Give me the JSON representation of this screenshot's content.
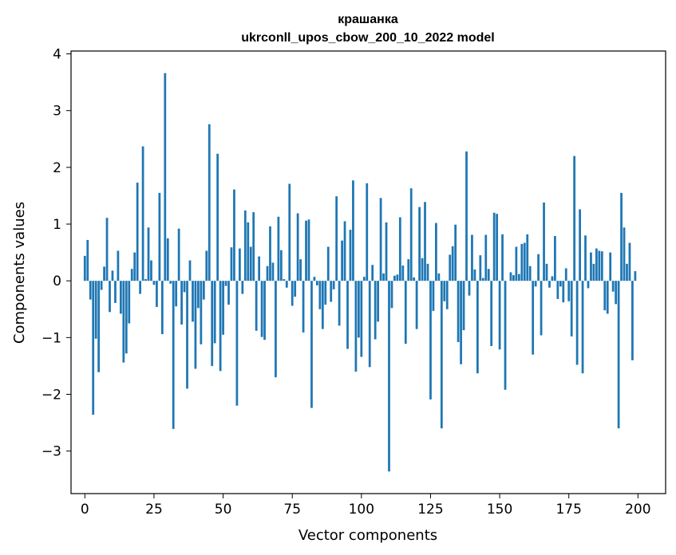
{
  "chart_data": {
    "type": "bar",
    "title_line1": "крашанка",
    "title_line2": "ukrconll_upos_cbow_200_10_2022 model",
    "xlabel": "Vector components",
    "ylabel": "Components values",
    "xlim": [
      -5,
      210
    ],
    "ylim": [
      -3.75,
      4.05
    ],
    "xticks": [
      0,
      25,
      50,
      75,
      100,
      125,
      150,
      175,
      200
    ],
    "yticks": [
      -3,
      -2,
      -1,
      0,
      1,
      2,
      3,
      4
    ],
    "ytick_labels": [
      "−3",
      "−2",
      "−1",
      "0",
      "1",
      "2",
      "3",
      "4"
    ],
    "bar_color": "#1f77b4",
    "grid": false,
    "values": [
      0.44,
      0.72,
      -0.33,
      -2.36,
      -1.02,
      -1.61,
      -0.16,
      0.25,
      1.11,
      -0.55,
      0.18,
      -0.39,
      0.53,
      -0.58,
      -1.44,
      -1.28,
      -0.75,
      0.21,
      0.5,
      1.73,
      -0.23,
      2.37,
      0.03,
      0.94,
      0.36,
      -0.07,
      -0.46,
      1.55,
      -0.94,
      3.66,
      0.75,
      -0.05,
      -2.61,
      -0.45,
      0.92,
      -0.77,
      -0.2,
      -1.9,
      0.36,
      -0.72,
      -1.55,
      -0.48,
      -1.12,
      -0.33,
      0.53,
      2.76,
      -1.5,
      -1.1,
      2.24,
      -1.59,
      -0.95,
      -0.09,
      -0.42,
      0.59,
      1.61,
      -2.2,
      0.57,
      -0.23,
      1.24,
      1.03,
      0.6,
      1.21,
      -0.88,
      0.43,
      -0.99,
      -1.04,
      0.26,
      0.96,
      0.32,
      -1.7,
      1.13,
      0.54,
      0.03,
      -0.12,
      1.71,
      -0.44,
      -0.28,
      1.19,
      0.38,
      -0.91,
      1.06,
      1.08,
      -2.24,
      0.07,
      -0.08,
      -0.5,
      -0.85,
      -0.42,
      0.6,
      -0.37,
      -0.15,
      1.49,
      -0.79,
      0.71,
      1.05,
      -1.2,
      0.9,
      1.77,
      -1.6,
      -1.0,
      -1.34,
      0.07,
      1.72,
      -1.52,
      0.28,
      -1.03,
      -0.72,
      1.46,
      0.13,
      1.03,
      -3.36,
      -0.48,
      0.09,
      0.11,
      1.12,
      0.27,
      -1.11,
      0.38,
      1.63,
      0.06,
      -0.85,
      1.3,
      0.4,
      1.39,
      0.3,
      -2.09,
      -0.53,
      1.02,
      0.13,
      -2.6,
      -0.36,
      -0.5,
      0.46,
      0.61,
      0.99,
      -1.08,
      -1.47,
      -0.87,
      2.28,
      -0.26,
      0.81,
      0.2,
      -1.63,
      0.45,
      0.05,
      0.81,
      0.21,
      -1.15,
      1.2,
      1.18,
      -1.21,
      0.82,
      -1.92,
      0.0,
      0.15,
      0.1,
      0.6,
      0.12,
      0.65,
      0.67,
      0.82,
      0.26,
      -1.3,
      -0.1,
      0.47,
      -0.96,
      1.38,
      0.3,
      -0.12,
      0.08,
      0.79,
      -0.32,
      -0.1,
      -0.38,
      0.22,
      -0.36,
      -0.98,
      2.2,
      -1.48,
      1.26,
      -1.63,
      0.8,
      -0.13,
      0.5,
      0.3,
      0.57,
      0.53,
      0.52,
      -0.52,
      -0.58,
      0.5,
      -0.19,
      -0.41,
      -2.6,
      1.55,
      0.94,
      0.3,
      0.67,
      -1.4,
      0.17
    ]
  }
}
